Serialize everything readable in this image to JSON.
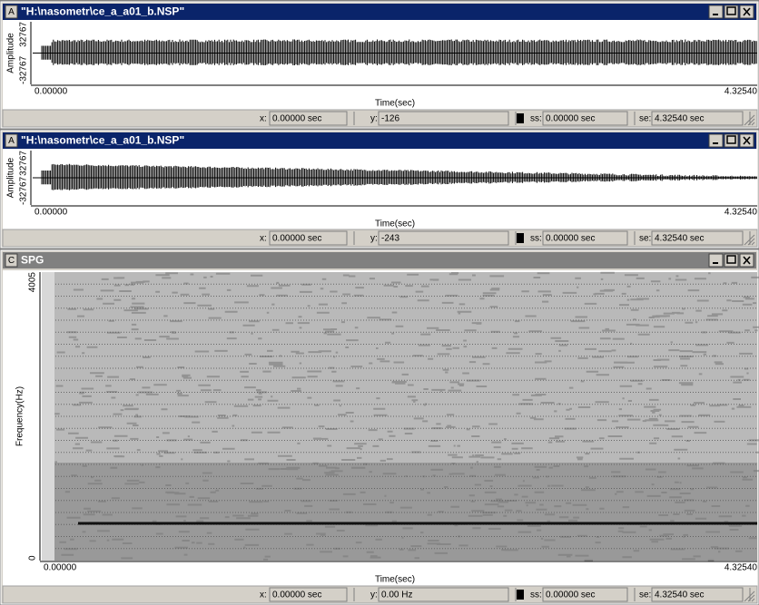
{
  "windows": [
    {
      "icon": "A",
      "title": "\"H:\\nasometr\\ce_a_a01_b.NSP\"",
      "active": true,
      "kind": "wave",
      "y_axis_label": "Amplitude",
      "y_ticks": [
        "32767",
        "-32767"
      ],
      "x_ticks": [
        "0.00000",
        "4.32540"
      ],
      "x_axis_label": "Time(sec)",
      "status": {
        "x_label": "x:",
        "x": "0.00000 sec",
        "y_label": "y:",
        "y": "-126",
        "ss_label": "ss:",
        "ss": "0.00000 sec",
        "se_label": "se:",
        "se": "4.32540 sec"
      }
    },
    {
      "icon": "A",
      "title": "\"H:\\nasometr\\ce_a_a01_b.NSP\"",
      "active": true,
      "kind": "wave2",
      "y_axis_label": "Amplitude",
      "y_ticks": [
        "32767",
        "-32767"
      ],
      "x_ticks": [
        "0.00000",
        "4.32540"
      ],
      "x_axis_label": "Time(sec)",
      "status": {
        "x_label": "x:",
        "x": "0.00000 sec",
        "y_label": "y:",
        "y": "-243",
        "ss_label": "ss:",
        "ss": "0.00000 sec",
        "se_label": "se:",
        "se": "4.32540 sec"
      }
    },
    {
      "icon": "C",
      "title": "SPG",
      "active": false,
      "kind": "spectrogram",
      "y_axis_label": "Frequency(Hz)",
      "y_ticks": [
        "4005",
        "0"
      ],
      "x_ticks": [
        "0.00000",
        "4.32540"
      ],
      "x_axis_label": "Time(sec)",
      "status": {
        "x_label": "x:",
        "x": "0.00000 sec",
        "y_label": "y:",
        "y": "0.00 Hz",
        "ss_label": "ss:",
        "ss": "0.00000 sec",
        "se_label": "se:",
        "se": "4.32540 sec"
      }
    }
  ]
}
